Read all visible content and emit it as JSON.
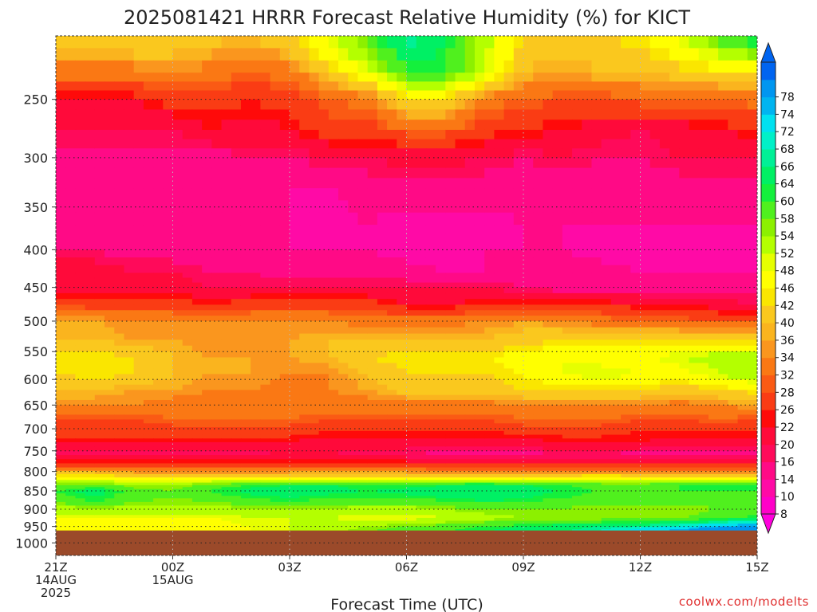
{
  "chart_data": {
    "type": "heatmap",
    "title": "2025081421 HRRR Forecast Relative Humidity (%) for KICT",
    "xlabel": "Forecast Time (UTC)",
    "ylabel": "",
    "credit": "coolwx.com/modelts",
    "x_hours": [
      0,
      1,
      2,
      3,
      4,
      5,
      6,
      7,
      8,
      9,
      10,
      11,
      12,
      13,
      14,
      15,
      16,
      17,
      18
    ],
    "xlim": [
      0,
      18
    ],
    "x_ticks": [
      {
        "hour": 0,
        "lines": [
          "21Z",
          "14AUG",
          "2025"
        ]
      },
      {
        "hour": 3,
        "lines": [
          "00Z",
          "15AUG"
        ]
      },
      {
        "hour": 6,
        "lines": [
          "03Z"
        ]
      },
      {
        "hour": 9,
        "lines": [
          "06Z"
        ]
      },
      {
        "hour": 12,
        "lines": [
          "09Z"
        ]
      },
      {
        "hour": 15,
        "lines": [
          "12Z"
        ]
      },
      {
        "hour": 18,
        "lines": [
          "15Z"
        ]
      }
    ],
    "y_ticks": [
      250,
      300,
      350,
      400,
      450,
      500,
      550,
      600,
      650,
      700,
      750,
      800,
      850,
      900,
      950,
      1000
    ],
    "y_scale": "log-pressure",
    "ylim_top_hpa": 205,
    "ylim_bottom_hpa": 1040,
    "surface_pressure_hpa": 962,
    "levels_hpa": [
      205,
      230,
      250,
      275,
      300,
      330,
      370,
      400,
      430,
      450,
      475,
      500,
      530,
      560,
      590,
      620,
      650,
      680,
      705,
      730,
      760,
      790,
      815,
      835,
      850,
      870,
      900,
      925,
      950,
      962
    ],
    "values": [
      [
        40,
        40,
        42,
        40,
        38,
        36,
        40,
        48,
        56,
        66,
        60,
        50,
        40,
        38,
        40,
        42,
        48,
        56,
        64
      ],
      [
        30,
        30,
        30,
        32,
        30,
        28,
        30,
        38,
        46,
        58,
        58,
        48,
        36,
        34,
        36,
        36,
        38,
        40,
        42
      ],
      [
        20,
        20,
        20,
        24,
        24,
        22,
        24,
        28,
        30,
        40,
        40,
        30,
        28,
        26,
        26,
        28,
        28,
        28,
        30
      ],
      [
        16,
        16,
        16,
        16,
        20,
        18,
        20,
        24,
        24,
        28,
        28,
        24,
        22,
        20,
        18,
        16,
        18,
        20,
        22
      ],
      [
        12,
        12,
        12,
        12,
        12,
        14,
        14,
        16,
        16,
        18,
        18,
        16,
        14,
        16,
        14,
        14,
        16,
        16,
        16
      ],
      [
        10,
        10,
        10,
        10,
        10,
        10,
        10,
        10,
        12,
        12,
        12,
        12,
        12,
        12,
        12,
        12,
        12,
        12,
        12
      ],
      [
        10,
        10,
        10,
        10,
        10,
        10,
        10,
        8,
        10,
        8,
        8,
        8,
        10,
        10,
        10,
        10,
        10,
        10,
        10
      ],
      [
        14,
        14,
        12,
        12,
        10,
        10,
        10,
        10,
        10,
        8,
        8,
        10,
        10,
        10,
        8,
        8,
        8,
        8,
        10
      ],
      [
        18,
        18,
        16,
        16,
        14,
        14,
        12,
        12,
        12,
        12,
        10,
        10,
        12,
        12,
        12,
        10,
        10,
        10,
        10
      ],
      [
        18,
        18,
        18,
        18,
        16,
        16,
        16,
        16,
        16,
        16,
        16,
        16,
        14,
        12,
        12,
        12,
        10,
        12,
        12
      ],
      [
        26,
        24,
        24,
        24,
        22,
        24,
        24,
        24,
        24,
        20,
        20,
        22,
        22,
        22,
        22,
        20,
        20,
        18,
        16
      ],
      [
        34,
        34,
        32,
        32,
        32,
        32,
        32,
        32,
        30,
        30,
        30,
        32,
        34,
        32,
        30,
        28,
        28,
        26,
        26
      ],
      [
        36,
        36,
        34,
        34,
        32,
        32,
        34,
        36,
        36,
        36,
        36,
        36,
        38,
        40,
        40,
        40,
        40,
        40,
        40
      ],
      [
        42,
        42,
        40,
        36,
        34,
        34,
        34,
        36,
        40,
        42,
        42,
        42,
        44,
        46,
        44,
        44,
        48,
        50,
        50
      ],
      [
        40,
        42,
        40,
        36,
        34,
        34,
        32,
        32,
        36,
        40,
        40,
        40,
        42,
        46,
        48,
        46,
        44,
        48,
        52
      ],
      [
        36,
        36,
        34,
        34,
        32,
        32,
        30,
        32,
        34,
        38,
        38,
        38,
        40,
        40,
        40,
        40,
        38,
        40,
        42
      ],
      [
        32,
        32,
        32,
        30,
        30,
        28,
        30,
        30,
        30,
        30,
        30,
        30,
        32,
        32,
        32,
        32,
        30,
        32,
        34
      ],
      [
        26,
        26,
        26,
        28,
        28,
        28,
        28,
        26,
        26,
        26,
        26,
        26,
        28,
        28,
        28,
        26,
        26,
        28,
        26
      ],
      [
        24,
        24,
        24,
        24,
        24,
        24,
        24,
        22,
        22,
        22,
        22,
        22,
        24,
        24,
        24,
        22,
        22,
        22,
        22
      ],
      [
        20,
        20,
        20,
        20,
        20,
        20,
        20,
        18,
        18,
        18,
        18,
        18,
        18,
        20,
        20,
        20,
        18,
        18,
        18
      ],
      [
        14,
        14,
        14,
        14,
        14,
        14,
        16,
        16,
        14,
        14,
        12,
        12,
        12,
        14,
        14,
        12,
        12,
        12,
        12
      ],
      [
        28,
        28,
        28,
        26,
        26,
        26,
        26,
        26,
        26,
        26,
        24,
        24,
        24,
        24,
        24,
        24,
        24,
        24,
        24
      ],
      [
        44,
        44,
        40,
        40,
        40,
        40,
        42,
        42,
        42,
        42,
        42,
        42,
        40,
        42,
        44,
        42,
        42,
        42,
        42
      ],
      [
        54,
        56,
        52,
        52,
        56,
        58,
        60,
        60,
        58,
        58,
        60,
        62,
        60,
        58,
        56,
        56,
        58,
        58,
        58
      ],
      [
        58,
        62,
        56,
        54,
        58,
        62,
        64,
        62,
        60,
        62,
        64,
        64,
        62,
        60,
        58,
        58,
        58,
        58,
        58
      ],
      [
        56,
        60,
        56,
        54,
        56,
        58,
        60,
        58,
        58,
        58,
        60,
        62,
        60,
        58,
        56,
        56,
        56,
        56,
        58
      ],
      [
        50,
        52,
        50,
        50,
        50,
        52,
        52,
        52,
        50,
        50,
        52,
        54,
        54,
        54,
        52,
        52,
        52,
        54,
        54
      ],
      [
        46,
        46,
        46,
        46,
        46,
        48,
        48,
        48,
        46,
        46,
        48,
        50,
        52,
        52,
        52,
        52,
        54,
        56,
        60
      ],
      [
        44,
        44,
        44,
        44,
        44,
        46,
        48,
        50,
        52,
        54,
        56,
        58,
        60,
        62,
        64,
        66,
        68,
        74,
        76
      ],
      [
        44,
        44,
        44,
        44,
        44,
        46,
        48,
        50,
        54,
        56,
        58,
        60,
        62,
        64,
        66,
        70,
        74,
        78,
        78
      ]
    ],
    "colorbar": {
      "levels": [
        8,
        10,
        14,
        16,
        20,
        22,
        26,
        28,
        32,
        34,
        36,
        40,
        42,
        46,
        48,
        52,
        54,
        58,
        60,
        64,
        66,
        68,
        72,
        74,
        78
      ],
      "colors": [
        "#ff00c8",
        "#ff0aa6",
        "#ff0a86",
        "#ff0a5a",
        "#ff0a3a",
        "#ff0a0a",
        "#fa3c14",
        "#fa5a14",
        "#fa7814",
        "#fa961e",
        "#fab41e",
        "#fac81e",
        "#fae600",
        "#ffff00",
        "#e6ff00",
        "#b4ff00",
        "#8cf000",
        "#50f01e",
        "#14f03c",
        "#00f064",
        "#00f096",
        "#00f0c8",
        "#00e1f0",
        "#00b4f0",
        "#0096f0",
        "#0064f0"
      ],
      "under_color": "#ff00dc",
      "over_color": "#0064f0"
    },
    "ground_color": "#9b4a2a",
    "grid": "dotted",
    "legend": "colorbar-right"
  }
}
